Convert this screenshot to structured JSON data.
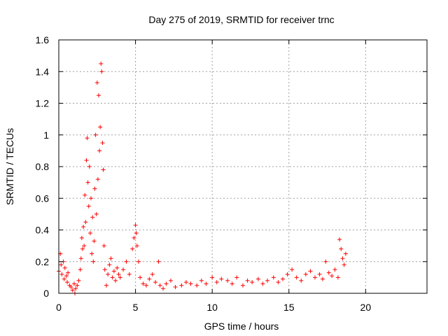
{
  "chart_data": {
    "type": "scatter",
    "title": "Day 275 of 2019, SRMTID for receiver trnc",
    "xlabel": "GPS time / hours",
    "ylabel": "SRMTID / TECUs",
    "xlim": [
      0,
      24
    ],
    "ylim": [
      0,
      1.6
    ],
    "xticks": [
      0,
      5,
      10,
      15,
      20
    ],
    "yticks": [
      0,
      0.2,
      0.4,
      0.6,
      0.8,
      1,
      1.2,
      1.4,
      1.6
    ],
    "xtick_labels": [
      "0",
      "5",
      "10",
      "15",
      "20"
    ],
    "ytick_labels": [
      "0",
      "0.2",
      "0.4",
      "0.6",
      "0.8",
      "1",
      "1.2",
      "1.4",
      "1.6"
    ],
    "grid": true,
    "marker": "+",
    "color": "#ff0000",
    "series": [
      {
        "name": "SRMTID",
        "x": [
          0.0,
          0.1,
          0.15,
          0.2,
          0.3,
          0.35,
          0.4,
          0.5,
          0.55,
          0.6,
          0.7,
          0.8,
          0.9,
          1.0,
          1.05,
          1.1,
          1.2,
          1.3,
          1.4,
          1.45,
          1.5,
          1.55,
          1.6,
          1.65,
          1.7,
          1.75,
          1.8,
          1.85,
          1.9,
          1.95,
          2.0,
          2.05,
          2.1,
          2.15,
          2.2,
          2.25,
          2.3,
          2.35,
          2.4,
          2.45,
          2.5,
          2.55,
          2.6,
          2.65,
          2.7,
          2.75,
          2.8,
          2.85,
          2.9,
          2.95,
          3.0,
          3.1,
          3.2,
          3.3,
          3.4,
          3.5,
          3.6,
          3.7,
          3.8,
          3.9,
          4.0,
          4.2,
          4.4,
          4.6,
          4.8,
          4.9,
          5.0,
          5.05,
          5.1,
          5.2,
          5.3,
          5.5,
          5.7,
          5.9,
          6.1,
          6.3,
          6.5,
          6.6,
          6.8,
          7.0,
          7.3,
          7.6,
          8.0,
          8.3,
          8.6,
          9.0,
          9.3,
          9.6,
          10.0,
          10.3,
          10.6,
          11.0,
          11.3,
          11.6,
          12.0,
          12.3,
          12.6,
          13.0,
          13.3,
          13.6,
          14.0,
          14.3,
          14.6,
          14.9,
          15.2,
          15.5,
          15.8,
          16.1,
          16.4,
          16.7,
          17.0,
          17.2,
          17.4,
          17.6,
          17.8,
          18.0,
          18.2,
          18.3,
          18.4,
          18.5,
          18.6,
          18.7
        ],
        "y": [
          0.14,
          0.25,
          0.18,
          0.12,
          0.2,
          0.09,
          0.16,
          0.11,
          0.07,
          0.13,
          0.05,
          0.04,
          0.02,
          0.06,
          0.0,
          0.03,
          0.05,
          0.08,
          0.15,
          0.22,
          0.35,
          0.28,
          0.42,
          0.3,
          0.62,
          0.45,
          0.84,
          0.98,
          0.7,
          0.55,
          0.8,
          0.38,
          0.6,
          0.25,
          0.48,
          0.2,
          0.33,
          0.66,
          1.0,
          0.5,
          1.33,
          0.72,
          1.25,
          0.9,
          1.05,
          1.45,
          1.4,
          0.95,
          0.78,
          0.3,
          0.15,
          0.05,
          0.12,
          0.18,
          0.22,
          0.1,
          0.14,
          0.08,
          0.16,
          0.12,
          0.1,
          0.15,
          0.2,
          0.12,
          0.28,
          0.35,
          0.43,
          0.38,
          0.3,
          0.2,
          0.1,
          0.06,
          0.05,
          0.09,
          0.12,
          0.07,
          0.2,
          0.05,
          0.03,
          0.06,
          0.08,
          0.04,
          0.05,
          0.07,
          0.06,
          0.05,
          0.08,
          0.06,
          0.1,
          0.07,
          0.09,
          0.08,
          0.06,
          0.1,
          0.05,
          0.08,
          0.07,
          0.09,
          0.06,
          0.08,
          0.1,
          0.07,
          0.09,
          0.12,
          0.15,
          0.1,
          0.08,
          0.12,
          0.14,
          0.1,
          0.12,
          0.09,
          0.2,
          0.13,
          0.11,
          0.15,
          0.1,
          0.34,
          0.28,
          0.22,
          0.18,
          0.25
        ]
      }
    ]
  }
}
